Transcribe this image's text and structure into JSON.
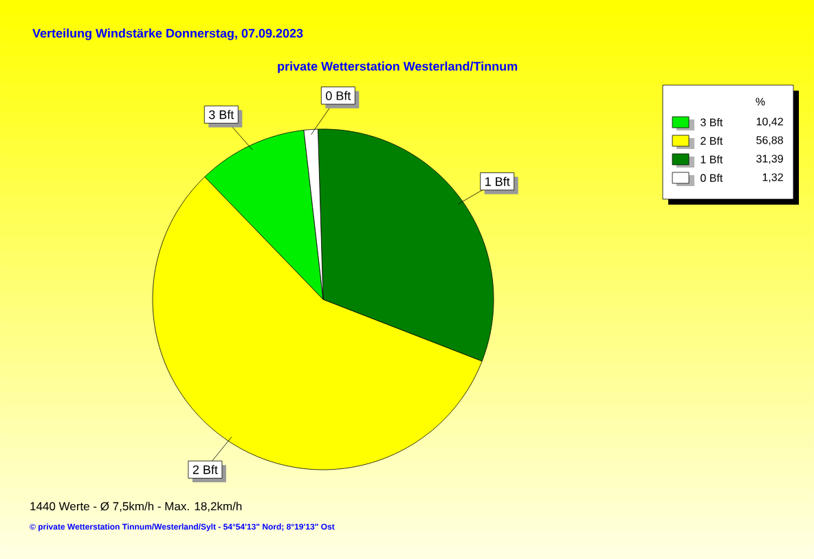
{
  "chart_data": {
    "type": "pie",
    "title": "Verteilung Windstärke  Donnerstag, 07.09.2023",
    "subtitle": "private Wetterstation Westerland/Tinnum",
    "categories": [
      "3 Bft",
      "2 Bft",
      "1 Bft",
      "0 Bft"
    ],
    "values": [
      10.42,
      56.88,
      31.39,
      1.32
    ],
    "colors": [
      "#00ee00",
      "#ffff00",
      "#008000",
      "#ffffff"
    ],
    "value_labels": [
      "10,42",
      "56,88",
      "31,39",
      "1,32"
    ],
    "legend": "top right",
    "legend_title": "%",
    "annotations": [
      "1440 Werte   -   Ø 7,5km/h  -  Max. 18,2km/h",
      "© private Wetterstation Tinnum/Westerland/Sylt  -  54°54'13\" Nord; 8°19'13\" Ost"
    ]
  }
}
